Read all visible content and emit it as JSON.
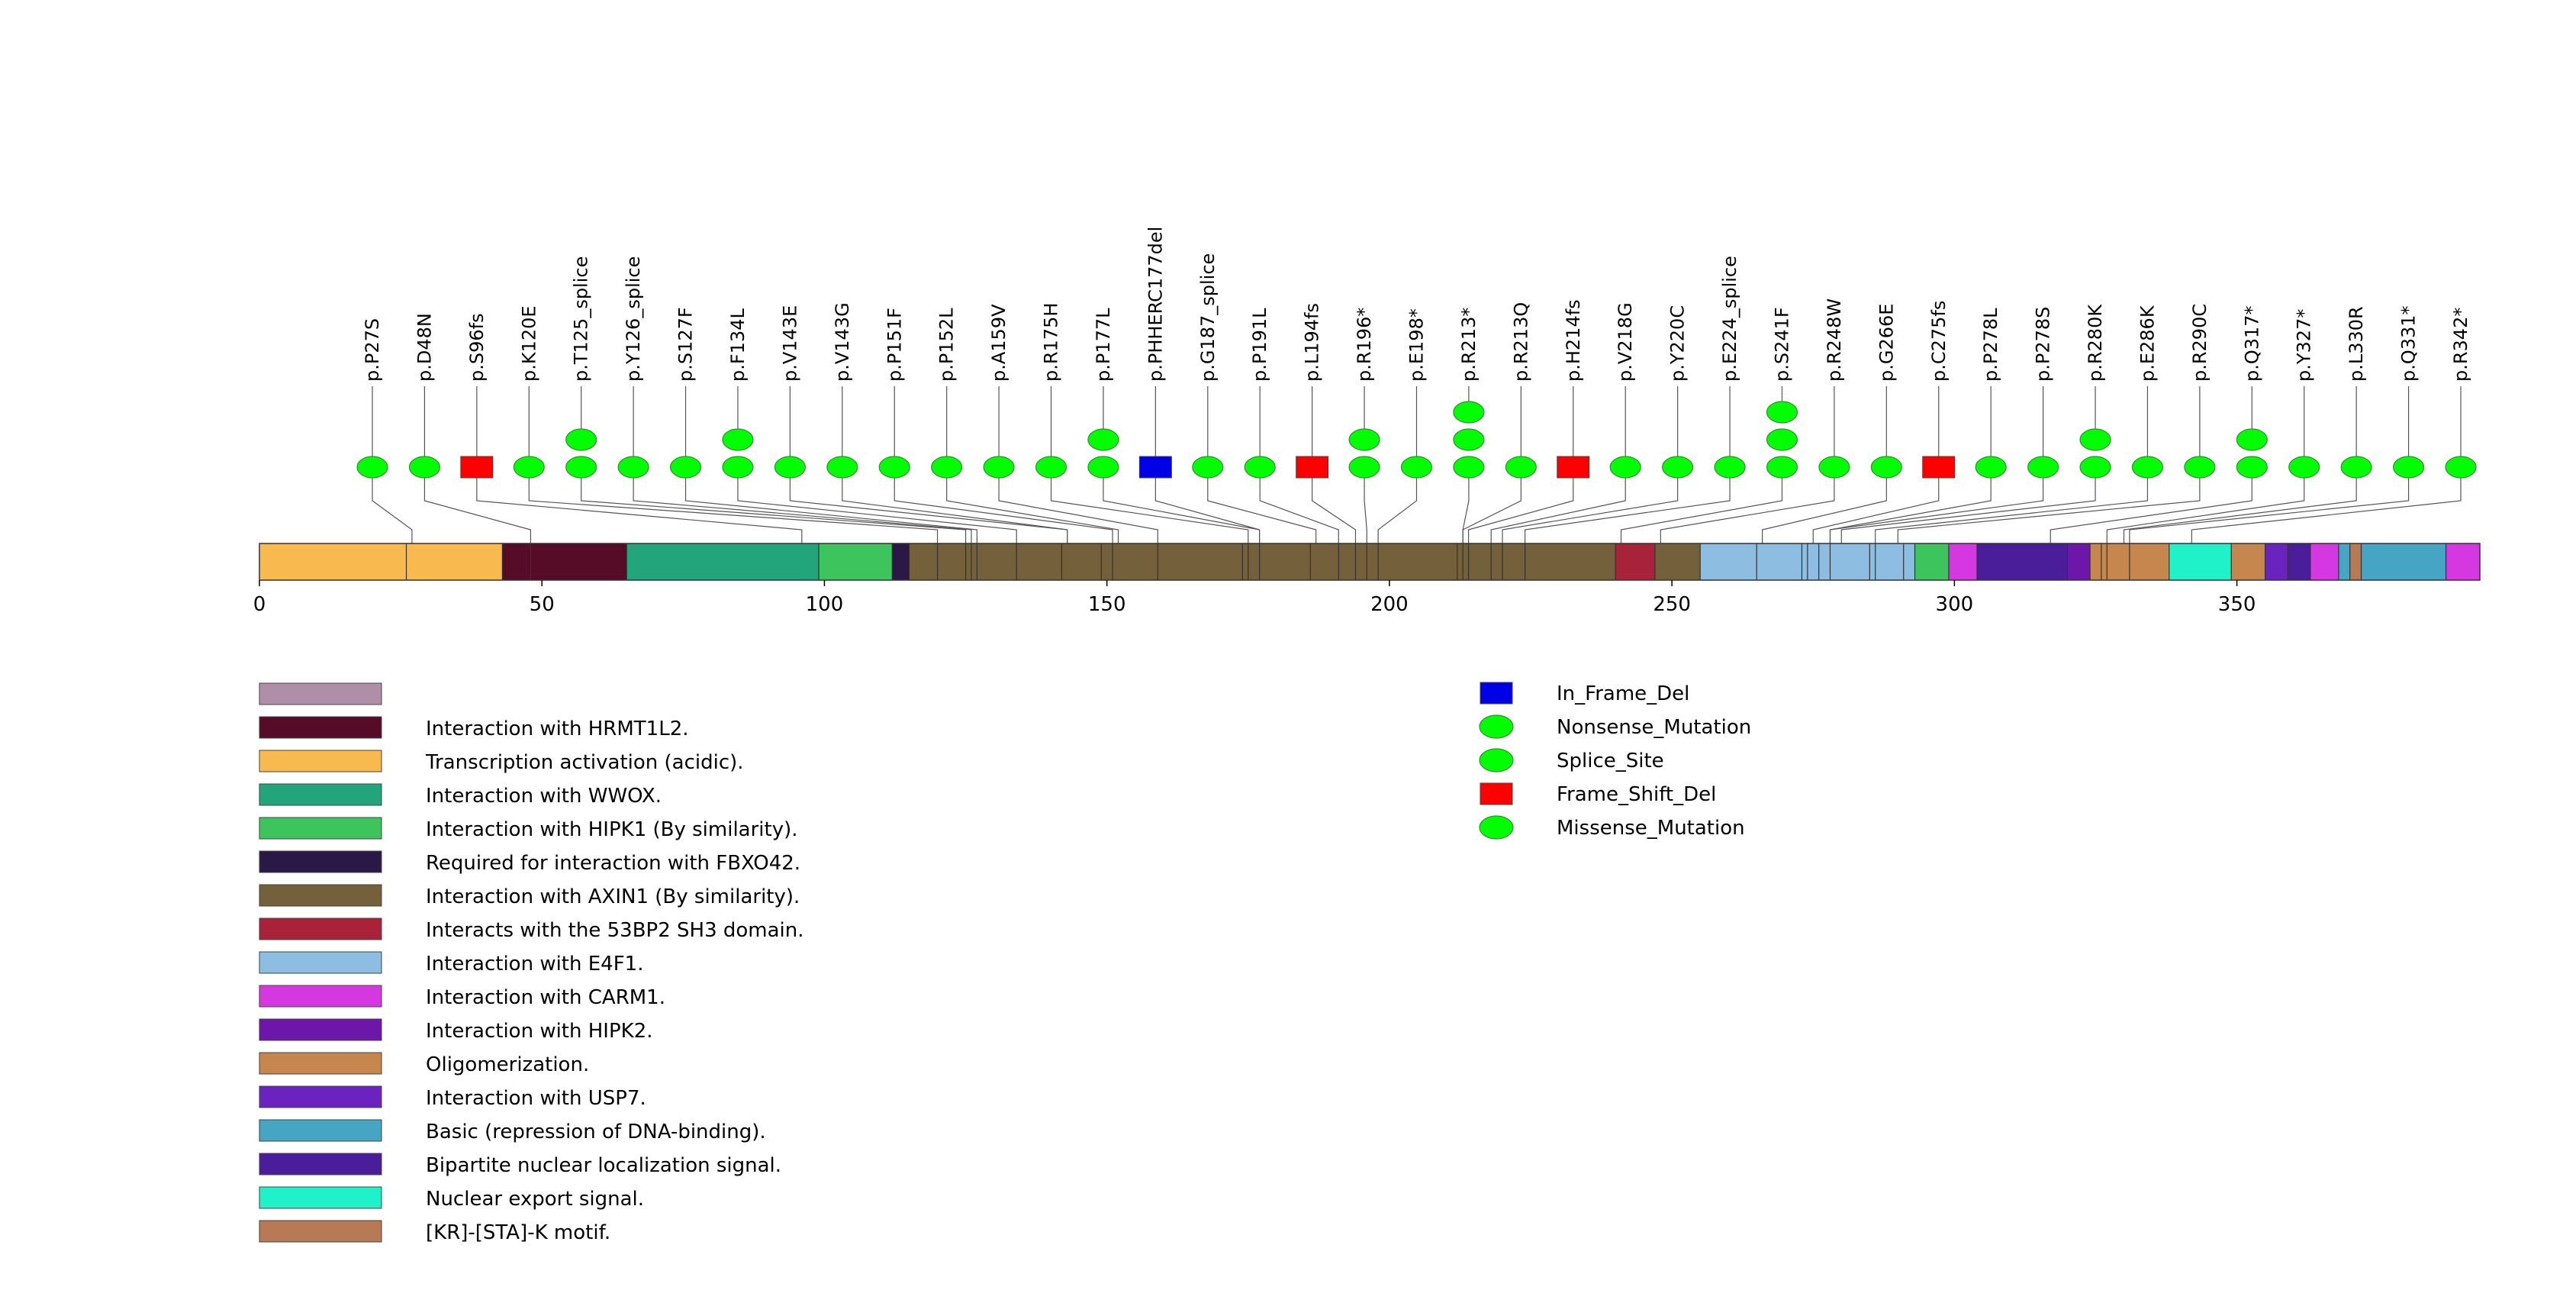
{
  "chart_data": {
    "type": "lollipop",
    "protein_length": 393,
    "axis": {
      "range": [
        0,
        393
      ],
      "ticks": [
        0,
        50,
        100,
        150,
        200,
        250,
        300,
        350
      ]
    },
    "domains": [
      {
        "name": "Transcription activation (acidic).",
        "start": 0,
        "end": 43,
        "color": "#F8B94E"
      },
      {
        "name": "Interaction with HRMT1L2.",
        "start": 43,
        "end": 65,
        "color": "#560C27"
      },
      {
        "name": "Interaction with WWOX.",
        "start": 65,
        "end": 99,
        "color": "#22A57A"
      },
      {
        "name": "Interaction with HIPK1 (By similarity).",
        "start": 99,
        "end": 112,
        "color": "#3DC45C"
      },
      {
        "name": "Required for interaction with FBXO42.",
        "start": 112,
        "end": 115,
        "color": "#2A1846"
      },
      {
        "name": "Interaction with AXIN1 (By similarity).",
        "start": 115,
        "end": 240,
        "color": "#74603A"
      },
      {
        "name": "Interacts with the 53BP2 SH3 domain.",
        "start": 240,
        "end": 247,
        "color": "#A8233A"
      },
      {
        "name": "Interaction with AXIN1 (By similarity).",
        "start": 247,
        "end": 255,
        "color": "#74603A"
      },
      {
        "name": "Interaction with E4F1.",
        "start": 255,
        "end": 293,
        "color": "#8DBDE0"
      },
      {
        "name": "Interaction with HIPK1 (By similarity).",
        "start": 293,
        "end": 299,
        "color": "#3DC45C"
      },
      {
        "name": "Interaction with CARM1.",
        "start": 299,
        "end": 304,
        "color": "#D538E0"
      },
      {
        "name": "Bipartite nuclear localization signal.",
        "start": 304,
        "end": 320,
        "color": "#4A1D9A"
      },
      {
        "name": "Interaction with HIPK2.",
        "start": 320,
        "end": 324,
        "color": "#6C16AA"
      },
      {
        "name": "Oligomerization.",
        "start": 324,
        "end": 338,
        "color": "#C5874E"
      },
      {
        "name": "Nuclear export signal.",
        "start": 338,
        "end": 349,
        "color": "#1FF2C8"
      },
      {
        "name": "Oligomerization.",
        "start": 349,
        "end": 355,
        "color": "#C5874E"
      },
      {
        "name": "Interaction with USP7.",
        "start": 355,
        "end": 359,
        "color": "#6A23BE"
      },
      {
        "name": "Bipartite nuclear localization signal.",
        "start": 359,
        "end": 363,
        "color": "#4A1D9A"
      },
      {
        "name": "Interaction with CARM1.",
        "start": 363,
        "end": 368,
        "color": "#D538E0"
      },
      {
        "name": "Basic (repression of DNA-binding).",
        "start": 368,
        "end": 370,
        "color": "#45A5C2"
      },
      {
        "name": "[KR]-[STA]-K motif.",
        "start": 370,
        "end": 372,
        "color": "#B87A55"
      },
      {
        "name": "Basic (repression of DNA-binding).",
        "start": 372,
        "end": 387,
        "color": "#45A5C2"
      },
      {
        "name": "Interaction with CARM1.",
        "start": 387,
        "end": 393,
        "color": "#D538E0"
      }
    ],
    "boundaries": [
      26,
      43,
      48,
      65,
      99,
      112,
      115,
      120,
      125,
      126,
      127,
      134,
      142,
      149,
      151,
      159,
      174,
      175,
      177,
      186,
      191,
      194,
      196,
      198,
      212,
      213,
      214,
      218,
      220,
      224,
      240,
      247,
      255,
      265,
      273,
      274,
      276,
      278,
      285,
      286,
      291,
      293,
      299,
      304,
      320,
      324,
      326,
      327,
      331,
      338,
      349,
      355,
      359,
      363,
      368,
      370,
      372,
      387
    ],
    "mutations": [
      {
        "label": "p.P27S",
        "position": 27,
        "stack": [
          {
            "type": "Missense_Mutation",
            "shape": "ellipse"
          }
        ]
      },
      {
        "label": "p.D48N",
        "position": 48,
        "stack": [
          {
            "type": "Missense_Mutation",
            "shape": "ellipse"
          }
        ]
      },
      {
        "label": "p.S96fs",
        "position": 96,
        "stack": [
          {
            "type": "Frame_Shift_Del",
            "shape": "rect"
          }
        ]
      },
      {
        "label": "p.K120E",
        "position": 120,
        "stack": [
          {
            "type": "Missense_Mutation",
            "shape": "ellipse"
          }
        ]
      },
      {
        "label": "p.T125_splice",
        "position": 125,
        "stack": [
          {
            "type": "Splice_Site",
            "shape": "ellipse"
          },
          {
            "type": "Splice_Site",
            "shape": "ellipse"
          }
        ]
      },
      {
        "label": "p.Y126_splice",
        "position": 126,
        "stack": [
          {
            "type": "Splice_Site",
            "shape": "ellipse"
          }
        ]
      },
      {
        "label": "p.S127F",
        "position": 127,
        "stack": [
          {
            "type": "Missense_Mutation",
            "shape": "ellipse"
          }
        ]
      },
      {
        "label": "p.F134L",
        "position": 134,
        "stack": [
          {
            "type": "Missense_Mutation",
            "shape": "ellipse"
          },
          {
            "type": "Missense_Mutation",
            "shape": "ellipse"
          }
        ]
      },
      {
        "label": "p.V143E",
        "position": 143,
        "stack": [
          {
            "type": "Missense_Mutation",
            "shape": "ellipse"
          }
        ]
      },
      {
        "label": "p.V143G",
        "position": 143,
        "stack": [
          {
            "type": "Missense_Mutation",
            "shape": "ellipse"
          }
        ]
      },
      {
        "label": "p.P151F",
        "position": 151,
        "stack": [
          {
            "type": "Missense_Mutation",
            "shape": "ellipse"
          }
        ]
      },
      {
        "label": "p.P152L",
        "position": 152,
        "stack": [
          {
            "type": "Missense_Mutation",
            "shape": "ellipse"
          }
        ]
      },
      {
        "label": "p.A159V",
        "position": 159,
        "stack": [
          {
            "type": "Missense_Mutation",
            "shape": "ellipse"
          }
        ]
      },
      {
        "label": "p.R175H",
        "position": 175,
        "stack": [
          {
            "type": "Missense_Mutation",
            "shape": "ellipse"
          }
        ]
      },
      {
        "label": "p.P177L",
        "position": 177,
        "stack": [
          {
            "type": "Missense_Mutation",
            "shape": "ellipse"
          },
          {
            "type": "Missense_Mutation",
            "shape": "ellipse"
          }
        ]
      },
      {
        "label": "p.PHHERC177del",
        "position": 177,
        "stack": [
          {
            "type": "In_Frame_Del",
            "shape": "rect"
          }
        ]
      },
      {
        "label": "p.G187_splice",
        "position": 187,
        "stack": [
          {
            "type": "Splice_Site",
            "shape": "ellipse"
          }
        ]
      },
      {
        "label": "p.P191L",
        "position": 191,
        "stack": [
          {
            "type": "Missense_Mutation",
            "shape": "ellipse"
          }
        ]
      },
      {
        "label": "p.L194fs",
        "position": 194,
        "stack": [
          {
            "type": "Frame_Shift_Del",
            "shape": "rect"
          }
        ]
      },
      {
        "label": "p.R196*",
        "position": 196,
        "stack": [
          {
            "type": "Nonsense_Mutation",
            "shape": "ellipse"
          },
          {
            "type": "Nonsense_Mutation",
            "shape": "ellipse"
          }
        ]
      },
      {
        "label": "p.E198*",
        "position": 198,
        "stack": [
          {
            "type": "Nonsense_Mutation",
            "shape": "ellipse"
          }
        ]
      },
      {
        "label": "p.R213*",
        "position": 213,
        "stack": [
          {
            "type": "Nonsense_Mutation",
            "shape": "ellipse"
          },
          {
            "type": "Nonsense_Mutation",
            "shape": "ellipse"
          },
          {
            "type": "Nonsense_Mutation",
            "shape": "ellipse"
          }
        ]
      },
      {
        "label": "p.R213Q",
        "position": 213,
        "stack": [
          {
            "type": "Missense_Mutation",
            "shape": "ellipse"
          }
        ]
      },
      {
        "label": "p.H214fs",
        "position": 214,
        "stack": [
          {
            "type": "Frame_Shift_Del",
            "shape": "rect"
          }
        ]
      },
      {
        "label": "p.V218G",
        "position": 218,
        "stack": [
          {
            "type": "Missense_Mutation",
            "shape": "ellipse"
          }
        ]
      },
      {
        "label": "p.Y220C",
        "position": 220,
        "stack": [
          {
            "type": "Missense_Mutation",
            "shape": "ellipse"
          }
        ]
      },
      {
        "label": "p.E224_splice",
        "position": 224,
        "stack": [
          {
            "type": "Splice_Site",
            "shape": "ellipse"
          }
        ]
      },
      {
        "label": "p.S241F",
        "position": 241,
        "stack": [
          {
            "type": "Missense_Mutation",
            "shape": "ellipse"
          },
          {
            "type": "Missense_Mutation",
            "shape": "ellipse"
          },
          {
            "type": "Missense_Mutation",
            "shape": "ellipse"
          }
        ]
      },
      {
        "label": "p.R248W",
        "position": 248,
        "stack": [
          {
            "type": "Missense_Mutation",
            "shape": "ellipse"
          }
        ]
      },
      {
        "label": "p.G266E",
        "position": 266,
        "stack": [
          {
            "type": "Missense_Mutation",
            "shape": "ellipse"
          }
        ]
      },
      {
        "label": "p.C275fs",
        "position": 275,
        "stack": [
          {
            "type": "Frame_Shift_Del",
            "shape": "rect"
          }
        ]
      },
      {
        "label": "p.P278L",
        "position": 278,
        "stack": [
          {
            "type": "Missense_Mutation",
            "shape": "ellipse"
          }
        ]
      },
      {
        "label": "p.P278S",
        "position": 278,
        "stack": [
          {
            "type": "Missense_Mutation",
            "shape": "ellipse"
          }
        ]
      },
      {
        "label": "p.R280K",
        "position": 280,
        "stack": [
          {
            "type": "Missense_Mutation",
            "shape": "ellipse"
          },
          {
            "type": "Missense_Mutation",
            "shape": "ellipse"
          }
        ]
      },
      {
        "label": "p.E286K",
        "position": 286,
        "stack": [
          {
            "type": "Missense_Mutation",
            "shape": "ellipse"
          }
        ]
      },
      {
        "label": "p.R290C",
        "position": 290,
        "stack": [
          {
            "type": "Missense_Mutation",
            "shape": "ellipse"
          }
        ]
      },
      {
        "label": "p.Q317*",
        "position": 317,
        "stack": [
          {
            "type": "Nonsense_Mutation",
            "shape": "ellipse"
          },
          {
            "type": "Nonsense_Mutation",
            "shape": "ellipse"
          }
        ]
      },
      {
        "label": "p.Y327*",
        "position": 327,
        "stack": [
          {
            "type": "Nonsense_Mutation",
            "shape": "ellipse"
          }
        ]
      },
      {
        "label": "p.L330R",
        "position": 330,
        "stack": [
          {
            "type": "Missense_Mutation",
            "shape": "ellipse"
          }
        ]
      },
      {
        "label": "p.Q331*",
        "position": 331,
        "stack": [
          {
            "type": "Nonsense_Mutation",
            "shape": "ellipse"
          }
        ]
      },
      {
        "label": "p.R342*",
        "position": 342,
        "stack": [
          {
            "type": "Nonsense_Mutation",
            "shape": "ellipse"
          }
        ]
      }
    ],
    "domain_legend": [
      {
        "label": "",
        "color": "#B08EA8"
      },
      {
        "label": "Interaction with HRMT1L2.",
        "color": "#560C27"
      },
      {
        "label": "Transcription activation (acidic).",
        "color": "#F8B94E"
      },
      {
        "label": "Interaction with WWOX.",
        "color": "#22A57A"
      },
      {
        "label": "Interaction with HIPK1 (By similarity).",
        "color": "#3DC45C"
      },
      {
        "label": "Required for interaction with FBXO42.",
        "color": "#2A1846"
      },
      {
        "label": "Interaction with AXIN1 (By similarity).",
        "color": "#74603A"
      },
      {
        "label": "Interacts with the 53BP2 SH3 domain.",
        "color": "#A8233A"
      },
      {
        "label": "Interaction with E4F1.",
        "color": "#8DBDE0"
      },
      {
        "label": "Interaction with CARM1.",
        "color": "#D538E0"
      },
      {
        "label": "Interaction with HIPK2.",
        "color": "#6C16AA"
      },
      {
        "label": "Oligomerization.",
        "color": "#C5874E"
      },
      {
        "label": "Interaction with USP7.",
        "color": "#6A23BE"
      },
      {
        "label": "Basic (repression of DNA-binding).",
        "color": "#45A5C2"
      },
      {
        "label": "Bipartite nuclear localization signal.",
        "color": "#4A1D9A"
      },
      {
        "label": "Nuclear export signal.",
        "color": "#1FF2C8"
      },
      {
        "label": "[KR]-[STA]-K motif.",
        "color": "#B87A55"
      }
    ],
    "mutation_legend": [
      {
        "label": "In_Frame_Del",
        "shape": "rect",
        "color": "#0000E6"
      },
      {
        "label": "Nonsense_Mutation",
        "shape": "ellipse",
        "color": "#00FF00"
      },
      {
        "label": "Splice_Site",
        "shape": "ellipse",
        "color": "#00FF00"
      },
      {
        "label": "Frame_Shift_Del",
        "shape": "rect",
        "color": "#FF0000"
      },
      {
        "label": "Missense_Mutation",
        "shape": "ellipse",
        "color": "#00FF00"
      }
    ],
    "type_colors": {
      "Missense_Mutation": "#00FF00",
      "Nonsense_Mutation": "#00FF00",
      "Splice_Site": "#00FF00",
      "Frame_Shift_Del": "#FF0000",
      "In_Frame_Del": "#0000E6"
    }
  }
}
